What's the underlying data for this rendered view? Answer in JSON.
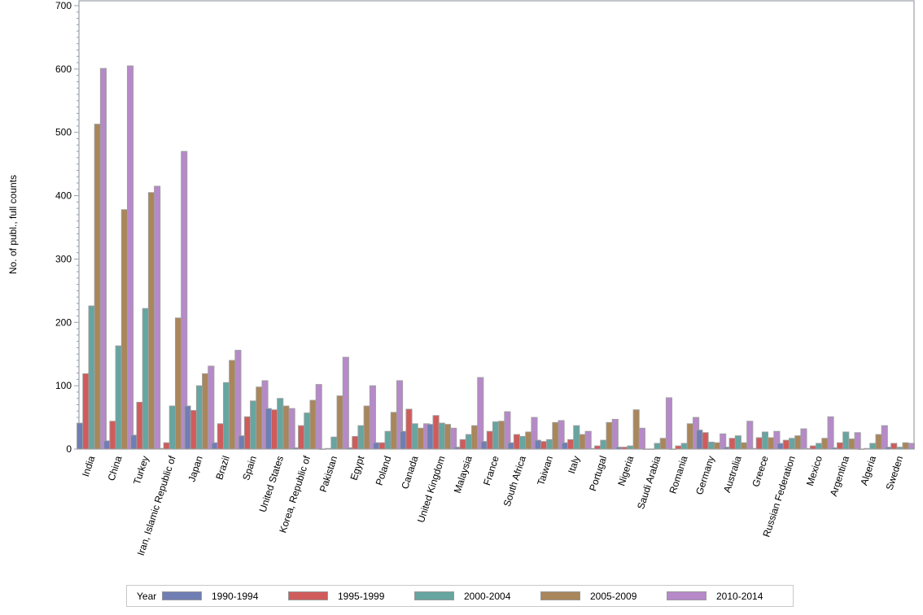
{
  "chart_data": {
    "type": "bar",
    "title": "",
    "xlabel": "",
    "ylabel": "No. of publ., full counts",
    "ylim": [
      0,
      700
    ],
    "yticks": [
      0,
      100,
      200,
      300,
      400,
      500,
      600,
      700
    ],
    "grid": false,
    "legend_position": "bottom",
    "legend_title": "Year",
    "categories": [
      "India",
      "China",
      "Turkey",
      "Iran, Islamic Republic of",
      "Japan",
      "Brazil",
      "Spain",
      "United States",
      "Korea, Republic of",
      "Pakistan",
      "Egypt",
      "Poland",
      "Canada",
      "United Kingdom",
      "Malaysia",
      "France",
      "South Africa",
      "Taiwan",
      "Italy",
      "Portugal",
      "Nigeria",
      "Saudi Arabia",
      "Romania",
      "Germany",
      "Australia",
      "Greece",
      "Russian Federation",
      "Mexico",
      "Argentina",
      "Algeria",
      "Sweden"
    ],
    "series": [
      {
        "name": "1990-1994",
        "color": "#6f7eb3",
        "values": [
          41,
          13,
          22,
          1,
          68,
          10,
          21,
          64,
          2,
          0,
          2,
          10,
          28,
          39,
          3,
          12,
          10,
          14,
          10,
          1,
          3,
          0,
          0,
          30,
          3,
          1,
          9,
          1,
          2,
          0,
          3
        ]
      },
      {
        "name": "1995-1999",
        "color": "#d05b5b",
        "values": [
          119,
          44,
          74,
          10,
          61,
          40,
          51,
          62,
          37,
          1,
          20,
          10,
          63,
          53,
          15,
          28,
          23,
          12,
          15,
          5,
          3,
          0,
          5,
          26,
          17,
          18,
          14,
          5,
          10,
          1,
          9
        ]
      },
      {
        "name": "2000-2004",
        "color": "#66a5a0",
        "values": [
          226,
          163,
          222,
          68,
          100,
          105,
          76,
          80,
          57,
          19,
          37,
          28,
          40,
          41,
          23,
          43,
          20,
          15,
          37,
          14,
          5,
          9,
          9,
          11,
          21,
          27,
          17,
          9,
          27,
          9,
          3
        ]
      },
      {
        "name": "2005-2009",
        "color": "#a9865b",
        "values": [
          513,
          378,
          405,
          207,
          119,
          140,
          98,
          68,
          77,
          84,
          68,
          58,
          33,
          39,
          37,
          44,
          27,
          42,
          23,
          42,
          62,
          17,
          40,
          10,
          10,
          18,
          21,
          17,
          16,
          23,
          10
        ]
      },
      {
        "name": "2010-2014",
        "color": "#b689c9",
        "values": [
          601,
          605,
          415,
          470,
          131,
          156,
          108,
          64,
          102,
          145,
          100,
          108,
          40,
          33,
          113,
          59,
          50,
          45,
          28,
          47,
          33,
          81,
          50,
          24,
          44,
          28,
          32,
          51,
          26,
          37,
          9
        ]
      }
    ]
  }
}
